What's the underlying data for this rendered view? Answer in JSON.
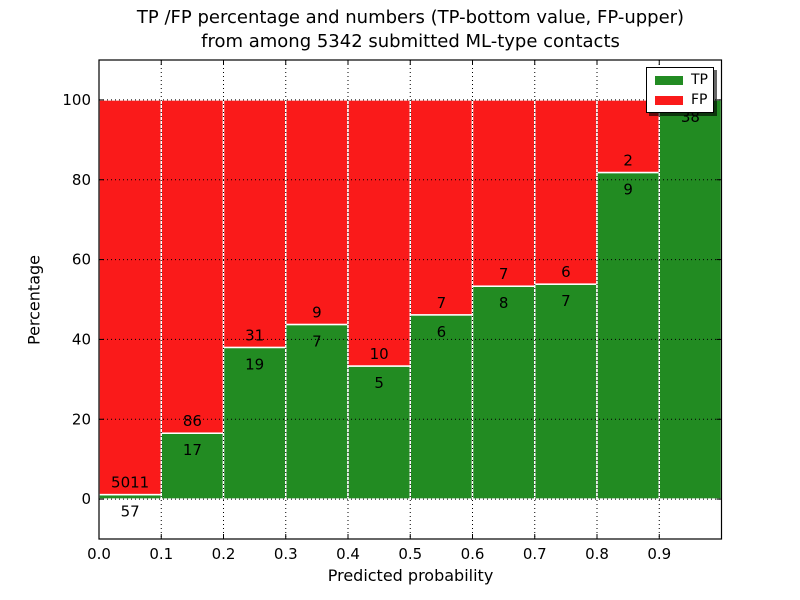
{
  "figure": {
    "background": "#ffffff"
  },
  "chart_data": {
    "type": "bar",
    "stacked": true,
    "normalized_to_percent": true,
    "title": "TP /FP percentage and numbers (TP-bottom value, FP-upper)\nfrom among 5342 submitted ML-type contacts",
    "title_lines": [
      "TP /FP percentage and numbers (TP-bottom value, FP-upper)",
      "from among 5342 submitted ML-type contacts"
    ],
    "total_contacts": 5342,
    "xlabel": "Predicted probability",
    "ylabel": "Percentage",
    "bin_width": 0.1,
    "categories": [
      "0.0-0.1",
      "0.1-0.2",
      "0.2-0.3",
      "0.3-0.4",
      "0.4-0.5",
      "0.5-0.6",
      "0.6-0.7",
      "0.7-0.8",
      "0.8-0.9",
      "0.9-1.0"
    ],
    "series": [
      {
        "name": "TP",
        "color": "#228b22",
        "counts": [
          57,
          17,
          19,
          7,
          5,
          6,
          8,
          7,
          9,
          38
        ]
      },
      {
        "name": "FP",
        "color": "#fa1a1a",
        "counts": [
          5011,
          86,
          31,
          9,
          10,
          7,
          7,
          6,
          2,
          0
        ]
      }
    ],
    "tp_percent": [
      1.1,
      16.5,
      38.0,
      43.8,
      33.3,
      46.2,
      53.3,
      53.8,
      81.8,
      100.0
    ],
    "xticks": [
      "0.0",
      "0.1",
      "0.2",
      "0.3",
      "0.4",
      "0.5",
      "0.6",
      "0.7",
      "0.8",
      "0.9"
    ],
    "ytick_values": [
      0,
      20,
      40,
      60,
      80,
      100
    ],
    "xlim": [
      0.0,
      1.0
    ],
    "ylim": [
      -10,
      110
    ],
    "grid": {
      "visible": true,
      "style": "dotted",
      "color": "#000000"
    },
    "bar_edge_color": "#ffffff",
    "legend": {
      "position": "upper right",
      "entries": [
        {
          "label": "TP",
          "color": "#228b22"
        },
        {
          "label": "FP",
          "color": "#fa1a1a"
        }
      ]
    }
  }
}
